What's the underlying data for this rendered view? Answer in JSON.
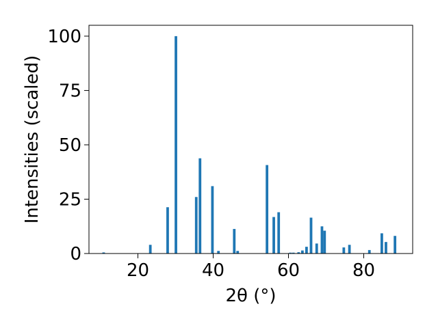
{
  "chart_data": {
    "type": "bar",
    "xlabel": "2θ (°)",
    "ylabel": "Intensities (scaled)",
    "xlim": [
      7,
      93
    ],
    "ylim": [
      0,
      105
    ],
    "xticks": [
      20,
      40,
      60,
      80
    ],
    "yticks": [
      0,
      25,
      50,
      75,
      100
    ],
    "bar_color": "#1f77b4",
    "grid": false,
    "legend": "none",
    "x": [
      10.9,
      23.3,
      27.9,
      30.1,
      35.5,
      36.5,
      39.8,
      41.4,
      45.6,
      46.5,
      54.3,
      56.1,
      57.4,
      60.5,
      61.3,
      62.7,
      63.7,
      64.8,
      66.0,
      67.5,
      68.9,
      69.6,
      74.7,
      76.2,
      81.5,
      84.8,
      85.9,
      88.3
    ],
    "values": [
      0.5,
      4.0,
      21.3,
      100.0,
      26.0,
      43.8,
      31.0,
      1.2,
      11.3,
      1.2,
      40.7,
      16.8,
      19.0,
      0.4,
      0.4,
      0.6,
      1.4,
      3.1,
      16.5,
      4.6,
      12.5,
      10.5,
      2.8,
      4.0,
      1.6,
      9.3,
      5.3,
      8.1
    ]
  }
}
